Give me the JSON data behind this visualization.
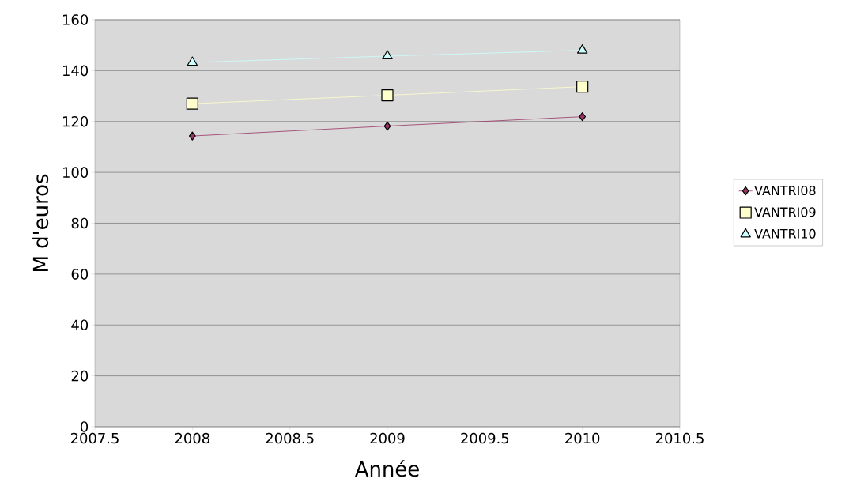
{
  "chart_data": {
    "type": "line",
    "xlabel": "Année",
    "ylabel": "M d'euros",
    "x": [
      2008,
      2009,
      2010
    ],
    "series": [
      {
        "name": "VANTRI08",
        "color": "#993366",
        "marker": "diamond",
        "values": [
          114.3,
          118.2,
          121.9
        ]
      },
      {
        "name": "VANTRI09",
        "color": "#ffffcc",
        "marker": "square",
        "values": [
          127,
          130.3,
          133.7
        ]
      },
      {
        "name": "VANTRI10",
        "color": "#ccffff",
        "marker": "triangle",
        "values": [
          143.2,
          145.7,
          148
        ]
      }
    ],
    "xlim": [
      2007.5,
      2010.5
    ],
    "xticks": [
      2007.5,
      2008,
      2008.5,
      2009,
      2009.5,
      2010,
      2010.5
    ],
    "ylim": [
      0,
      160
    ],
    "yticks": [
      0,
      20,
      40,
      60,
      80,
      100,
      120,
      140,
      160
    ],
    "grid": "y",
    "legend": "right",
    "line_style": "solid"
  }
}
